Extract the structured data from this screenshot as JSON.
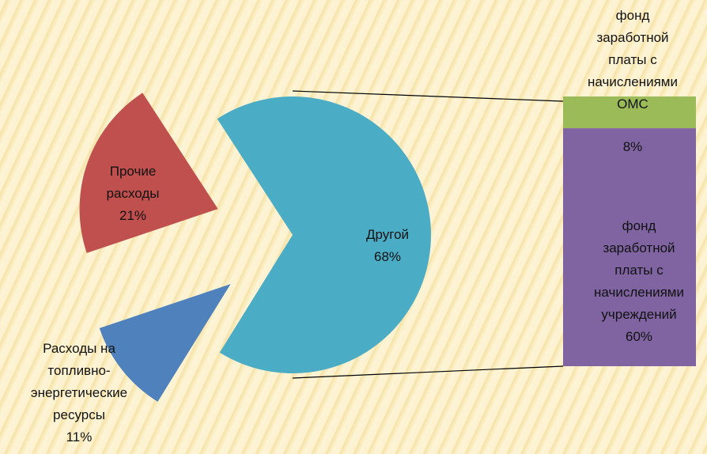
{
  "chart_data": {
    "type": "bar-of-pie",
    "pie": {
      "categories": [
        "Другой",
        "Расходы на топливно-энергетические ресурсы",
        "Прочие расходы"
      ],
      "values": [
        68,
        11,
        21
      ],
      "value_labels": [
        "68%",
        "11%",
        "21%"
      ],
      "colors": [
        "#4bacc6",
        "#4f81bd",
        "#c0504d"
      ]
    },
    "bar": {
      "categories": [
        "фонд заработной платы с начислениями ОМС",
        "фонд заработной платы с начислениями учреждений"
      ],
      "values": [
        8,
        60
      ],
      "value_labels": [
        "8%",
        "60%"
      ],
      "colors": [
        "#9bbb59",
        "#8064a2"
      ]
    }
  }
}
